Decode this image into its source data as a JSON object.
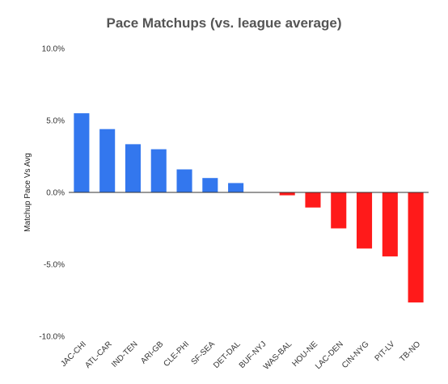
{
  "chart_data": {
    "type": "bar",
    "title": "Pace Matchups (vs. league average)",
    "xlabel": "",
    "ylabel": "Matchup Pace Vs Avg",
    "categories": [
      "JAC-CHI",
      "ATL-CAR",
      "IND-TEN",
      "ARI-GB",
      "CLE-PHI",
      "SF-SEA",
      "DET-DAL",
      "BUF-NYJ",
      "WAS-BAL",
      "HOU-NE",
      "LAC-DEN",
      "CIN-NYG",
      "PIT-LV",
      "TB-NO"
    ],
    "values": [
      5.5,
      4.4,
      3.35,
      3.0,
      1.6,
      1.0,
      0.65,
      0.0,
      -0.2,
      -1.05,
      -2.5,
      -3.9,
      -4.45,
      -7.65
    ],
    "ylim": [
      -10,
      10
    ],
    "yticks": [
      10,
      5,
      0,
      -5,
      -10
    ],
    "ytick_labels": [
      "10.0%",
      "5.0%",
      "0.0%",
      "-5.0%",
      "-10.0%"
    ],
    "grid": false,
    "legend": "none",
    "colors": {
      "positive": "#3377ee",
      "negative": "#ff1a1a"
    }
  }
}
